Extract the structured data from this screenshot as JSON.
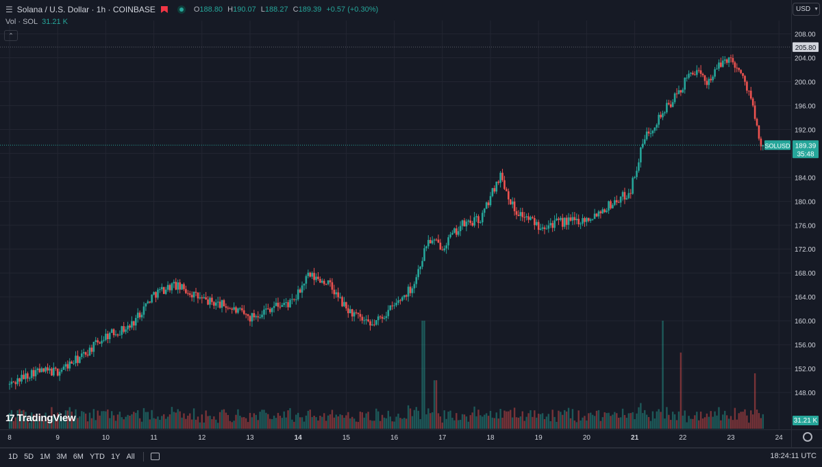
{
  "header": {
    "menu_icon": "hamburger-icon",
    "title": "Solana / U.S. Dollar · 1h · COINBASE",
    "flag_icon": "flag-icon",
    "open_label": "O",
    "open": "188.80",
    "high_label": "H",
    "high": "190.07",
    "low_label": "L",
    "low": "188.27",
    "close_label": "C",
    "close": "189.39",
    "change": "+0.57 (+0.30%)"
  },
  "volume_legend": {
    "label": "Vol · SOL",
    "value": "31.21 K"
  },
  "currency": {
    "label": "USD"
  },
  "price_scale": {
    "hline_label": "205.80",
    "symbol": "SOLUSD",
    "last_price": "189.39",
    "countdown": "35:48",
    "volume_tag": "31.21 K"
  },
  "branding": {
    "name": "TradingView"
  },
  "bottom_bar": {
    "timeframes": [
      "1D",
      "5D",
      "1M",
      "3M",
      "6M",
      "YTD",
      "1Y",
      "All"
    ],
    "clock": "18:24:11 UTC"
  },
  "colors": {
    "up": "#26a69a",
    "down": "#ef5350",
    "background": "#161a25",
    "grid": "#232632",
    "text": "#d1d4dc"
  },
  "chart_data": {
    "type": "candlestick",
    "symbol": "SOLUSD",
    "exchange": "COINBASE",
    "interval": "1h",
    "ylim": [
      144,
      209
    ],
    "y_ticks": [
      148,
      152,
      156,
      160,
      164,
      168,
      172,
      176,
      180,
      184,
      188,
      192,
      196,
      200,
      204,
      208
    ],
    "y_tick_labels": [
      "148.00",
      "152.00",
      "156.00",
      "160.00",
      "164.00",
      "168.00",
      "172.00",
      "176.00",
      "180.00",
      "184.00",
      "188.00",
      "192.00",
      "196.00",
      "200.00",
      "204.00",
      "208.00"
    ],
    "x_day_labels": [
      "8",
      "9",
      "10",
      "11",
      "12",
      "13",
      "14",
      "15",
      "16",
      "17",
      "18",
      "19",
      "20",
      "21",
      "22",
      "23",
      "24"
    ],
    "x_day_positions": [
      8,
      9,
      10,
      11,
      12,
      13,
      14,
      15,
      16,
      17,
      18,
      19,
      20,
      21,
      22,
      23,
      24
    ],
    "horizontal_line": 205.8,
    "last_price": 189.39,
    "price_path_daily": [
      [
        8.0,
        149.3
      ],
      [
        8.5,
        151.5
      ],
      [
        9.0,
        151.5
      ],
      [
        9.5,
        154.0
      ],
      [
        10.0,
        157.5
      ],
      [
        10.5,
        159.0
      ],
      [
        11.0,
        164.5
      ],
      [
        11.4,
        166.0
      ],
      [
        11.7,
        165.0
      ],
      [
        12.0,
        163.5
      ],
      [
        12.5,
        162.5
      ],
      [
        13.0,
        160.5
      ],
      [
        13.5,
        162.5
      ],
      [
        13.9,
        163.0
      ],
      [
        14.2,
        167.5
      ],
      [
        14.6,
        166.5
      ],
      [
        15.0,
        162.0
      ],
      [
        15.5,
        159.0
      ],
      [
        16.0,
        162.5
      ],
      [
        16.4,
        166.0
      ],
      [
        16.7,
        173.5
      ],
      [
        17.0,
        172.5
      ],
      [
        17.4,
        176.0
      ],
      [
        17.8,
        177.0
      ],
      [
        18.2,
        184.5
      ],
      [
        18.5,
        178.5
      ],
      [
        19.0,
        176.0
      ],
      [
        19.5,
        176.5
      ],
      [
        20.0,
        177.0
      ],
      [
        20.5,
        179.5
      ],
      [
        20.9,
        181.5
      ],
      [
        21.2,
        190.5
      ],
      [
        21.5,
        194.0
      ],
      [
        21.9,
        198.0
      ],
      [
        22.2,
        202.0
      ],
      [
        22.5,
        200.0
      ],
      [
        22.9,
        204.0
      ],
      [
        23.1,
        203.0
      ],
      [
        23.4,
        198.0
      ],
      [
        23.6,
        189.5
      ],
      [
        23.7,
        189.39
      ]
    ],
    "volume_spikes": [
      [
        16.6,
        31.21
      ],
      [
        16.85,
        14.0
      ],
      [
        21.6,
        31.21
      ],
      [
        21.95,
        22.0
      ],
      [
        23.5,
        16.0
      ]
    ]
  }
}
